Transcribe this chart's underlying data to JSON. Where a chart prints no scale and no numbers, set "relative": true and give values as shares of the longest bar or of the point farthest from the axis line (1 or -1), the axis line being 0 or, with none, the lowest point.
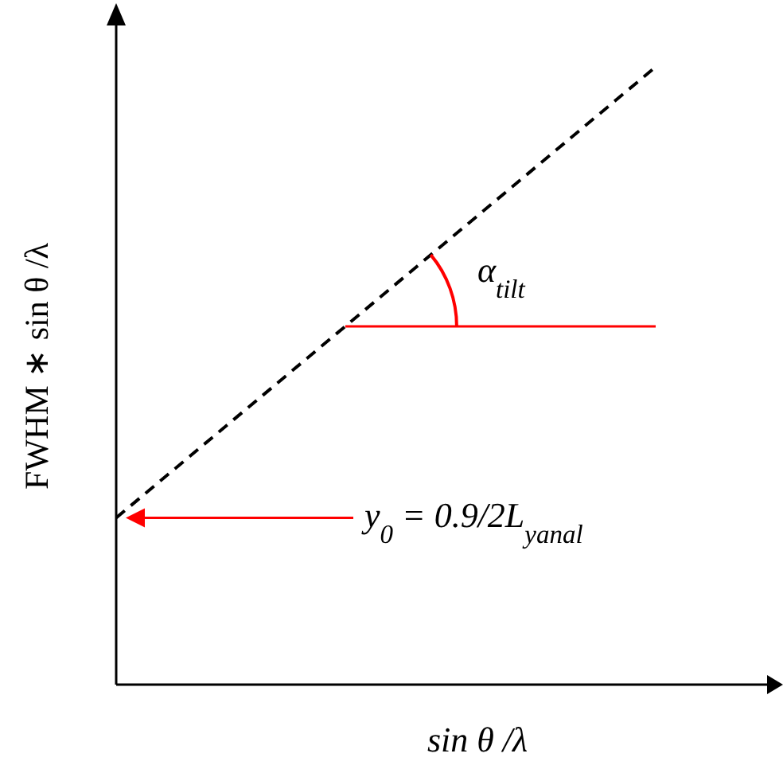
{
  "chart_data": {
    "type": "line",
    "relative": true,
    "xlabel": "sin θ /λ",
    "ylabel": "FWHM ∗ sin θ /λ",
    "categories": [
      null,
      null
    ],
    "series": [
      {
        "color": "#000000",
        "values": [
          0.27,
          1
        ]
      }
    ],
    "ref_lines": [
      {
        "axis": "y",
        "value": 0.58,
        "color": "#ff0000"
      }
    ],
    "line_style": "dashed",
    "annotations": [
      "α$_{tilt}$",
      "y$_{0}$ = 0.9/2L$_{yanal}$"
    ]
  }
}
